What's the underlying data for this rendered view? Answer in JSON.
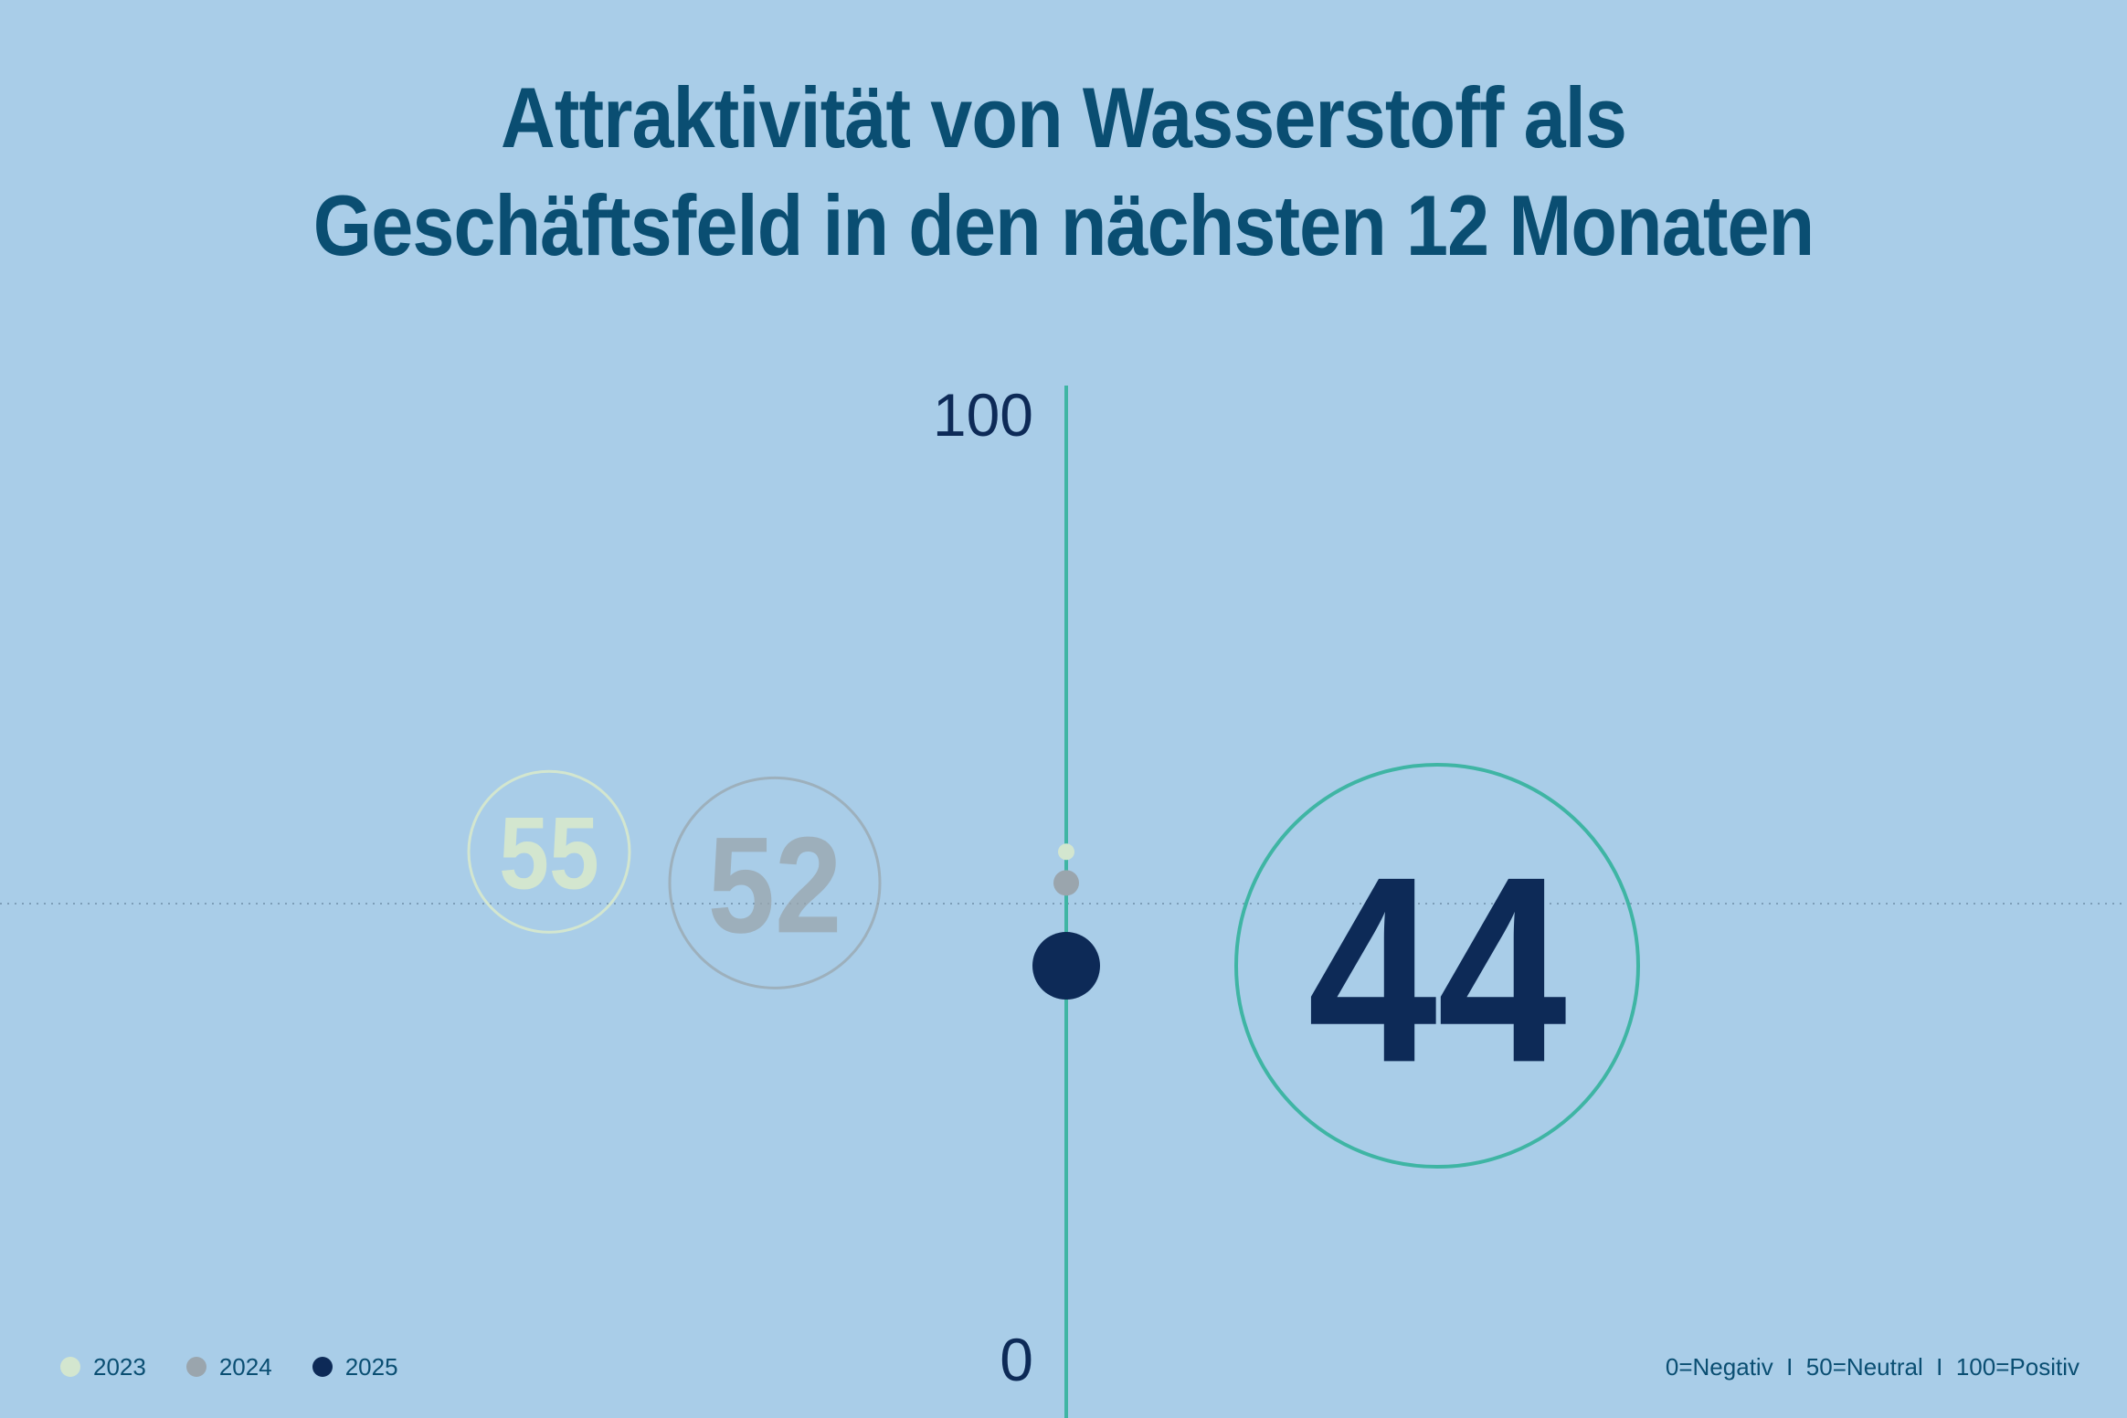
{
  "title": {
    "line1": "Attraktivität von Wasserstoff als",
    "line2": "Geschäftsfeld in den nächsten 12 Monaten"
  },
  "chart_data": {
    "type": "scatter",
    "title": "Attraktivität von Wasserstoff als Geschäftsfeld in den nächsten 12 Monaten",
    "y_axis": {
      "min": 0,
      "max": 100,
      "tick_labels": [
        "0",
        "100"
      ],
      "reference_line": 50
    },
    "series": [
      {
        "name": "2023",
        "value": 55,
        "label": "55",
        "color": "#d3e6cf"
      },
      {
        "name": "2024",
        "value": 52,
        "label": "52",
        "color": "#9aa5ad"
      },
      {
        "name": "2025",
        "value": 44,
        "label": "44",
        "color": "#0d2a57"
      }
    ],
    "legend_position": "bottom-left",
    "scale_note": "0=Negativ  I  50=Neutral  I  100=Positiv"
  },
  "colors": {
    "background": "#a9cde8",
    "axis": "#3fb5a4",
    "title": "#0a4e72",
    "current_ring": "#3fb5a4"
  }
}
